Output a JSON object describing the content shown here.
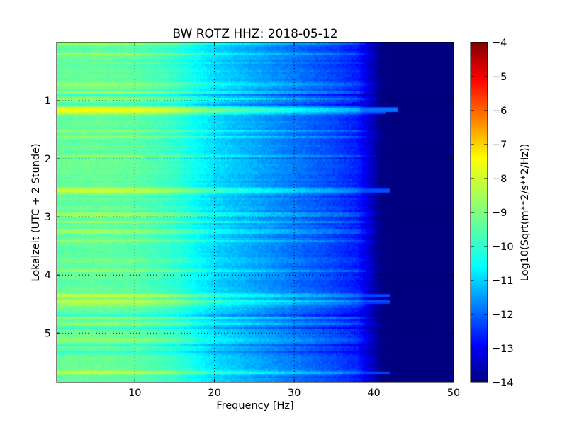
{
  "chart_data": {
    "type": "heatmap",
    "title": "BW ROTZ HHZ: 2018-05-12",
    "xlabel": "Frequency [Hz]",
    "ylabel": "Lokalzeit (UTC + 2 Stunde)",
    "x_range": [
      0.2,
      50
    ],
    "y_range": [
      0,
      5.85
    ],
    "y_inverted": true,
    "x_ticks": [
      10,
      20,
      30,
      40,
      50
    ],
    "x_tick_labels": [
      "10",
      "20",
      "30",
      "40",
      "50"
    ],
    "y_ticks": [
      1,
      2,
      3,
      4,
      5
    ],
    "y_tick_labels": [
      "1",
      "2",
      "3",
      "4",
      "5"
    ],
    "grid": true,
    "colormap": "jet",
    "colorbar": {
      "label": "Log10(Sqrt(m**2/s**2/Hz))",
      "range": [
        -14,
        -4
      ],
      "ticks": [
        -14,
        -13,
        -12,
        -11,
        -10,
        -9,
        -8,
        -7,
        -6,
        -5,
        -4
      ],
      "tick_labels": [
        "−14",
        "−13",
        "−12",
        "−11",
        "−10",
        "−9",
        "−8",
        "−7",
        "−6",
        "−5",
        "−4"
      ]
    },
    "frequency_profile": {
      "frequency_hz": [
        0.2,
        5,
        10,
        15,
        20,
        25,
        30,
        35,
        38,
        40,
        41,
        42,
        50
      ],
      "log10_amplitude": [
        -9.3,
        -9.25,
        -9.35,
        -9.75,
        -10.6,
        -11.1,
        -11.6,
        -12.1,
        -12.5,
        -13.5,
        -14,
        -14,
        -14
      ]
    },
    "strong_bands": [
      {
        "hour": 1.15,
        "boost": 1.45,
        "extends_to_hz": 43
      },
      {
        "hour": 2.55,
        "boost": 1.15,
        "extends_to_hz": 42
      },
      {
        "hour": 4.35,
        "boost": 0.85,
        "extends_to_hz": 42
      },
      {
        "hour": 4.48,
        "boost": 0.75,
        "extends_to_hz": 42
      },
      {
        "hour": 0.72,
        "boost": 0.5,
        "extends_to_hz": 42
      },
      {
        "hour": 5.68,
        "boost": 0.45,
        "extends_to_hz": 42
      },
      {
        "hour": 5.1,
        "boost": 0.4,
        "extends_to_hz": 42
      }
    ]
  }
}
